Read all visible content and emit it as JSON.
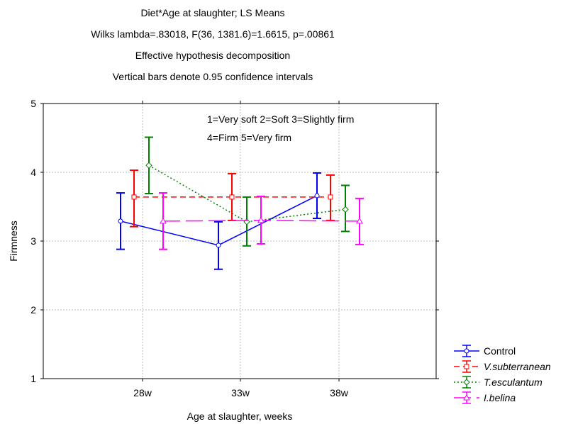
{
  "chart_data": {
    "type": "line",
    "title": "Diet*Age at slaughter; LS Means",
    "subtitle_lines": [
      "Wilks lambda=.83018, F(36, 1381.6)=1.6615, p=.00861",
      "Effective hypothesis decomposition",
      "Vertical bars denote 0.95 confidence intervals"
    ],
    "xlabel": "Age at slaughter, weeks",
    "ylabel": "Firmness",
    "ylim": [
      1,
      5
    ],
    "yticks": [
      1,
      2,
      3,
      4,
      5
    ],
    "categories": [
      "28w",
      "33w",
      "38w"
    ],
    "grid": true,
    "legend_position": "outside-bottom-right",
    "annotation": [
      "1=Very soft 2=Soft 3=Slightly firm",
      "4=Firm  5=Very firm"
    ],
    "series": [
      {
        "name": "Control",
        "italic": false,
        "color": "#0000ff",
        "marker": "circle",
        "dash": "",
        "values": [
          3.29,
          2.94,
          3.66
        ],
        "lower": [
          2.88,
          2.59,
          3.33
        ],
        "upper": [
          3.7,
          3.28,
          3.99
        ]
      },
      {
        "name": "V.subterranean",
        "italic": true,
        "color": "#ff0000",
        "marker": "square",
        "dash": "8,5",
        "values": [
          3.64,
          3.64,
          3.64
        ],
        "lower": [
          3.21,
          3.3,
          3.3
        ],
        "upper": [
          4.03,
          3.98,
          3.96
        ]
      },
      {
        "name": "T.esculantum",
        "italic": true,
        "color": "#008000",
        "marker": "diamond",
        "dash": "2,3",
        "values": [
          4.1,
          3.28,
          3.46
        ],
        "lower": [
          3.69,
          2.93,
          3.14
        ],
        "upper": [
          4.51,
          3.64,
          3.81
        ]
      },
      {
        "name": "I.belina",
        "italic": true,
        "color": "#ff00ff",
        "marker": "triangle",
        "dash": "24,8",
        "values": [
          3.29,
          3.3,
          3.29
        ],
        "lower": [
          2.88,
          2.96,
          2.95
        ],
        "upper": [
          3.7,
          3.65,
          3.62
        ]
      }
    ]
  }
}
